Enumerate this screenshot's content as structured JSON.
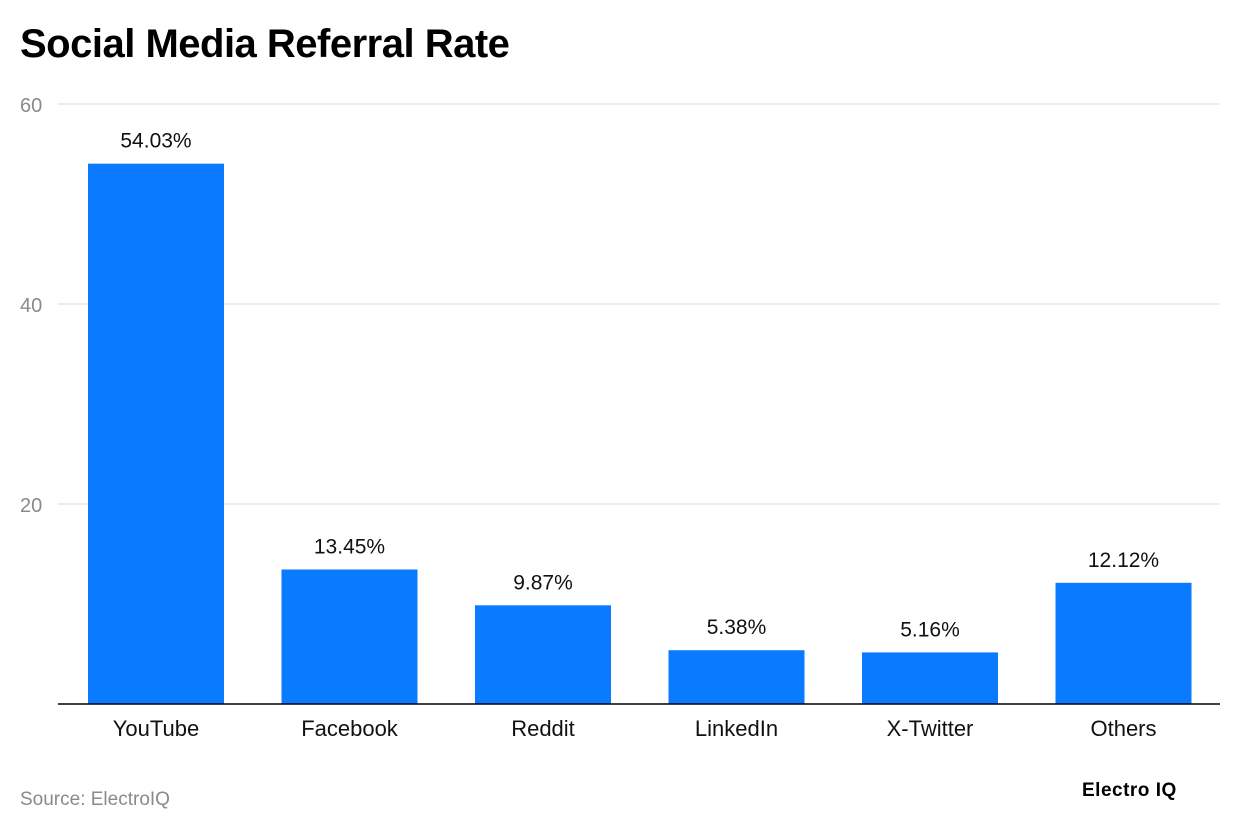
{
  "title": "Social Media Referral Rate",
  "source": "Source: ElectroIQ",
  "brand": "Electro IQ",
  "colors": {
    "bar": "#0a7bff",
    "grid": "#e1e1e1",
    "axis": "#000000",
    "tick_label": "#8a8a8a",
    "label": "#111111"
  },
  "chart_data": {
    "type": "bar",
    "categories": [
      "YouTube",
      "Facebook",
      "Reddit",
      "LinkedIn",
      "X-Twitter",
      "Others"
    ],
    "values": [
      54.03,
      13.45,
      9.87,
      5.38,
      5.16,
      12.12
    ],
    "value_labels": [
      "54.03%",
      "13.45%",
      "9.87%",
      "5.38%",
      "5.16%",
      "12.12%"
    ],
    "yticks": [
      20,
      40,
      60
    ],
    "ylim": [
      0,
      60
    ],
    "title": "Social Media Referral Rate",
    "xlabel": "",
    "ylabel": "",
    "grid": true
  }
}
